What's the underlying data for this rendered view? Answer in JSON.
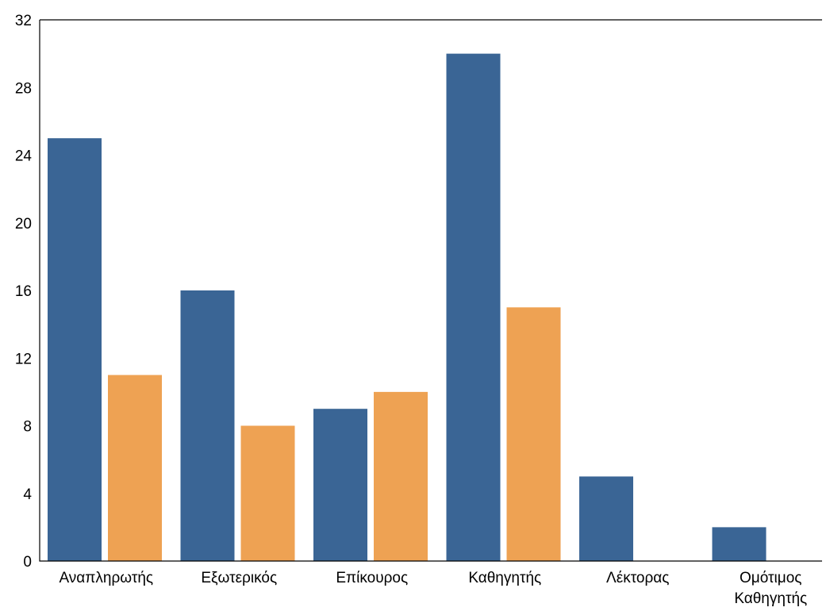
{
  "chart_data": {
    "type": "bar",
    "categories": [
      [
        "Αναπληρωτής"
      ],
      [
        "Εξωτερικός"
      ],
      [
        "Επίκουρος"
      ],
      [
        "Καθηγητής"
      ],
      [
        "Λέκτορας"
      ],
      [
        "Ομότιμος",
        "Καθηγητής"
      ]
    ],
    "series": [
      {
        "values": [
          25,
          16,
          9,
          30,
          5,
          2
        ],
        "color": "#3a6595"
      },
      {
        "values": [
          11,
          8,
          10,
          15,
          0,
          0
        ],
        "color": "#eea253"
      }
    ],
    "y_ticks": [
      0,
      4,
      8,
      12,
      16,
      20,
      24,
      28,
      32
    ],
    "ylim": [
      0,
      32
    ],
    "grid": false,
    "legend": "none"
  }
}
